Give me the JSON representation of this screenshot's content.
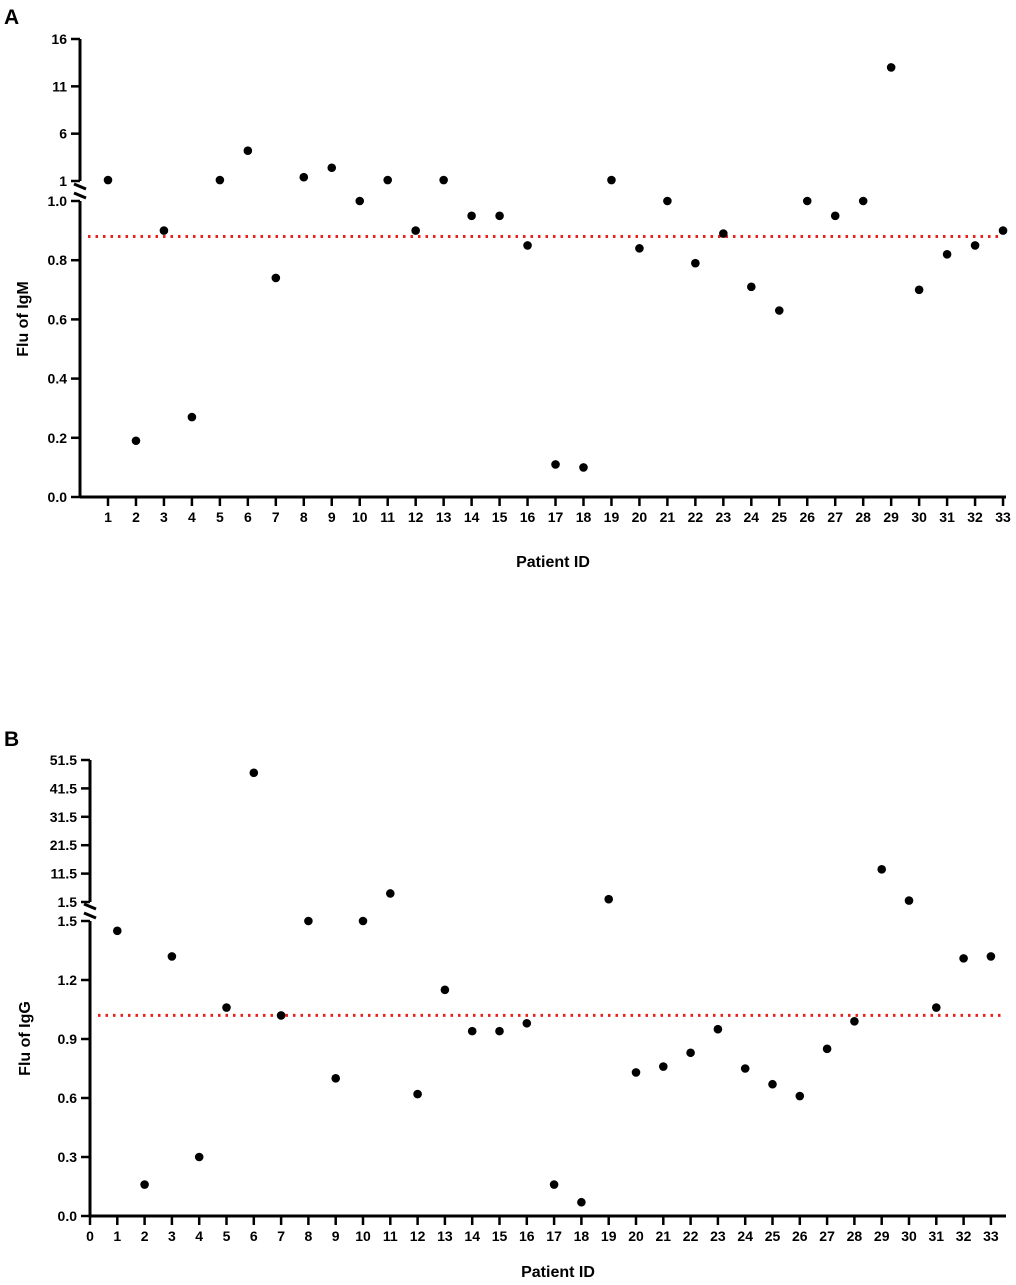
{
  "chart_data": [
    {
      "type": "scatter",
      "panel": "A",
      "xlabel": "Patient ID",
      "ylabel": "Flu of IgM",
      "x_ticks": [
        "1",
        "2",
        "3",
        "4",
        "5",
        "6",
        "7",
        "8",
        "9",
        "10",
        "11",
        "12",
        "13",
        "14",
        "15",
        "16",
        "17",
        "18",
        "19",
        "20",
        "21",
        "22",
        "23",
        "24",
        "25",
        "26",
        "27",
        "28",
        "29",
        "30",
        "31",
        "32",
        "33"
      ],
      "y_broken_axis": true,
      "y_lower_ticks": [
        "0.0",
        "0.2",
        "0.4",
        "0.6",
        "0.8",
        "1.0"
      ],
      "y_upper_ticks": [
        "1",
        "6",
        "11",
        "16"
      ],
      "ylim_lower": [
        0,
        1.0
      ],
      "ylim_upper": [
        1,
        16
      ],
      "threshold": 0.88,
      "threshold_color": "#e8211b",
      "x": [
        1,
        2,
        3,
        4,
        5,
        6,
        7,
        8,
        9,
        10,
        11,
        12,
        13,
        14,
        15,
        16,
        17,
        18,
        19,
        20,
        21,
        22,
        23,
        24,
        25,
        26,
        27,
        28,
        29,
        30,
        31,
        32,
        33
      ],
      "values": [
        1.1,
        0.19,
        0.9,
        0.27,
        1.1,
        4.2,
        0.74,
        1.4,
        2.4,
        1.0,
        1.1,
        0.9,
        1.1,
        0.95,
        0.95,
        0.85,
        0.11,
        0.1,
        1.1,
        0.84,
        1.0,
        0.79,
        0.89,
        0.71,
        0.63,
        1.0,
        0.95,
        1.0,
        13.0,
        0.7,
        0.82,
        0.85,
        0.9
      ]
    },
    {
      "type": "scatter",
      "panel": "B",
      "xlabel": "Patient ID",
      "ylabel": "Flu of IgG",
      "x_ticks": [
        "0",
        "1",
        "2",
        "3",
        "4",
        "5",
        "6",
        "7",
        "8",
        "9",
        "10",
        "11",
        "12",
        "13",
        "14",
        "15",
        "16",
        "17",
        "18",
        "19",
        "20",
        "21",
        "22",
        "23",
        "24",
        "25",
        "26",
        "27",
        "28",
        "29",
        "30",
        "31",
        "32",
        "33"
      ],
      "y_broken_axis": true,
      "y_lower_ticks": [
        "0.0",
        "0.3",
        "0.6",
        "0.9",
        "1.2",
        "1.5"
      ],
      "y_upper_ticks": [
        "1.5",
        "11.5",
        "21.5",
        "31.5",
        "41.5",
        "51.5"
      ],
      "ylim_lower": [
        0,
        1.5
      ],
      "ylim_upper": [
        1.5,
        51.5
      ],
      "threshold": 1.02,
      "threshold_color": "#e8211b",
      "x": [
        1,
        2,
        3,
        4,
        5,
        6,
        7,
        8,
        9,
        10,
        11,
        12,
        13,
        14,
        15,
        16,
        17,
        18,
        19,
        20,
        21,
        22,
        23,
        24,
        25,
        26,
        27,
        28,
        29,
        30,
        31,
        32,
        33
      ],
      "values": [
        1.45,
        0.16,
        1.32,
        0.3,
        1.06,
        47.0,
        1.02,
        1.5,
        0.7,
        1.5,
        4.5,
        0.62,
        1.15,
        0.94,
        0.94,
        0.98,
        0.16,
        0.07,
        2.5,
        0.73,
        0.76,
        0.83,
        0.95,
        0.75,
        0.67,
        0.61,
        0.85,
        0.99,
        13.0,
        2.0,
        1.06,
        1.31,
        1.32
      ]
    }
  ]
}
